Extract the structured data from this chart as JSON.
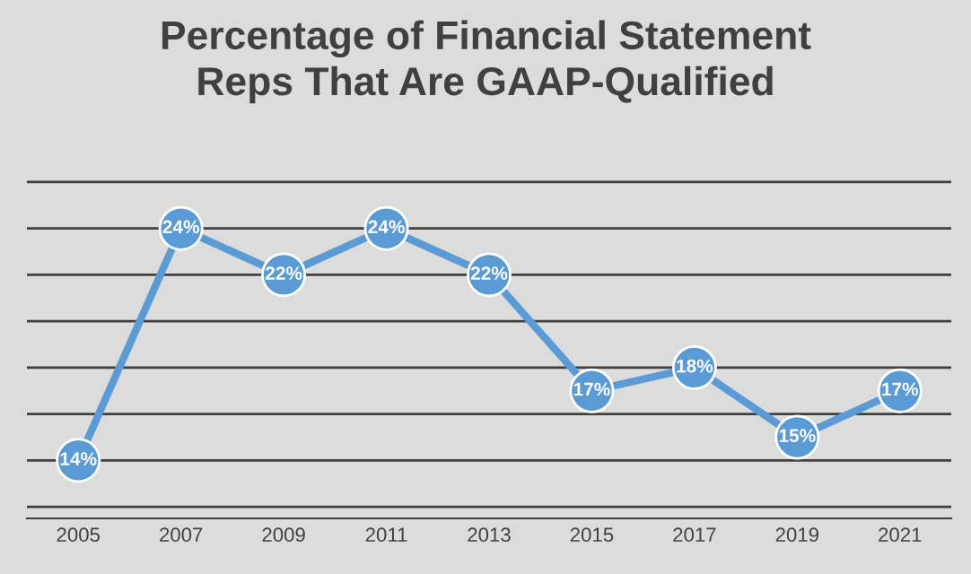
{
  "chart_data": {
    "type": "line",
    "title": "Percentage of Financial Statement\nReps That Are GAAP-Qualified",
    "categories": [
      "2005",
      "2007",
      "2009",
      "2011",
      "2013",
      "2015",
      "2017",
      "2019",
      "2021"
    ],
    "series": [
      {
        "color": "#5b9bd5",
        "values": [
          14,
          24,
          22,
          24,
          22,
          17,
          18,
          15,
          17
        ],
        "value_labels": [
          "14%",
          "24%",
          "22%",
          "24%",
          "22%",
          "17%",
          "18%",
          "15%",
          "17%"
        ]
      }
    ],
    "grid": "y",
    "marker": "circle",
    "line_style": "solid"
  }
}
